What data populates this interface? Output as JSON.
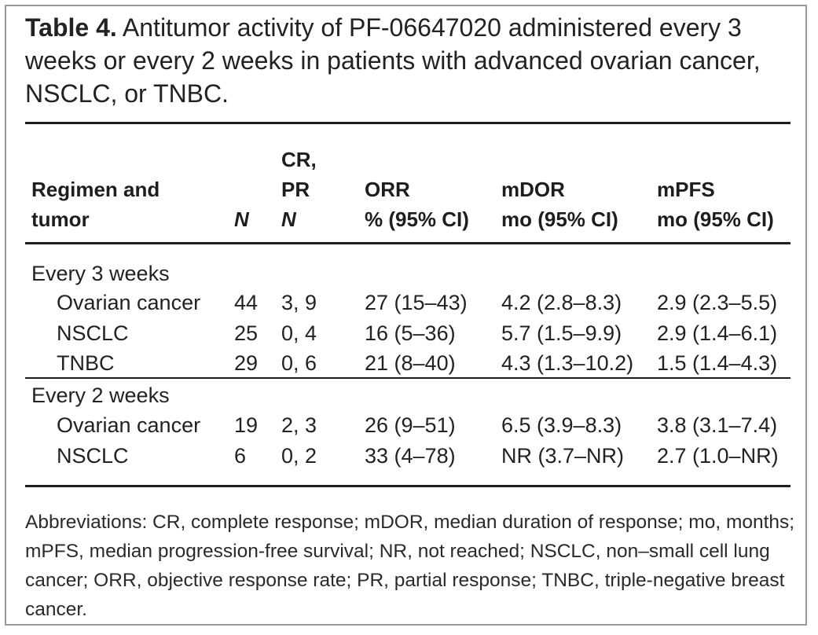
{
  "caption": {
    "label": "Table 4.",
    "text": "Antitumor activity of PF-06647020 administered every 3 weeks or every 2 weeks in patients with advanced ovarian cancer, NSCLC, or TNBC."
  },
  "headers": {
    "regimen": [
      "Regimen and",
      "tumor"
    ],
    "n": "N",
    "crpr": [
      "CR,",
      "PR",
      "N"
    ],
    "orr": [
      "ORR",
      "% (95% CI)"
    ],
    "mdor": [
      "mDOR",
      "mo (95% CI)"
    ],
    "mpfs": [
      "mPFS",
      "mo (95% CI)"
    ]
  },
  "groups": [
    {
      "label": "Every 3 weeks",
      "rows": [
        {
          "tumor": "Ovarian cancer",
          "n": "44",
          "crpr": "3, 9",
          "orr": "27 (15–43)",
          "mdor": "4.2 (2.8–8.3)",
          "mpfs": "2.9 (2.3–5.5)"
        },
        {
          "tumor": "NSCLC",
          "n": "25",
          "crpr": "0, 4",
          "orr": "16 (5–36)",
          "mdor": "5.7 (1.5–9.9)",
          "mpfs": "2.9 (1.4–6.1)"
        },
        {
          "tumor": "TNBC",
          "n": "29",
          "crpr": "0, 6",
          "orr": "21 (8–40)",
          "mdor": "4.3 (1.3–10.2)",
          "mpfs": "1.5 (1.4–4.3)"
        }
      ]
    },
    {
      "label": "Every 2 weeks",
      "rows": [
        {
          "tumor": "Ovarian cancer",
          "n": "19",
          "crpr": "2, 3",
          "orr": "26 (9–51)",
          "mdor": "6.5 (3.9–8.3)",
          "mpfs": "3.8 (3.1–7.4)"
        },
        {
          "tumor": "NSCLC",
          "n": "6",
          "crpr": "0, 2",
          "orr": "33 (4–78)",
          "mdor": "NR (3.7–NR)",
          "mpfs": "2.7 (1.0–NR)"
        }
      ]
    }
  ],
  "footnote": "Abbreviations: CR, complete response; mDOR, median duration of response; mo, months; mPFS, median progression-free survival; NR, not reached; NSCLC, non–small cell lung cancer; ORR, objective response rate; PR, partial response; TNBC, triple-negative breast cancer."
}
